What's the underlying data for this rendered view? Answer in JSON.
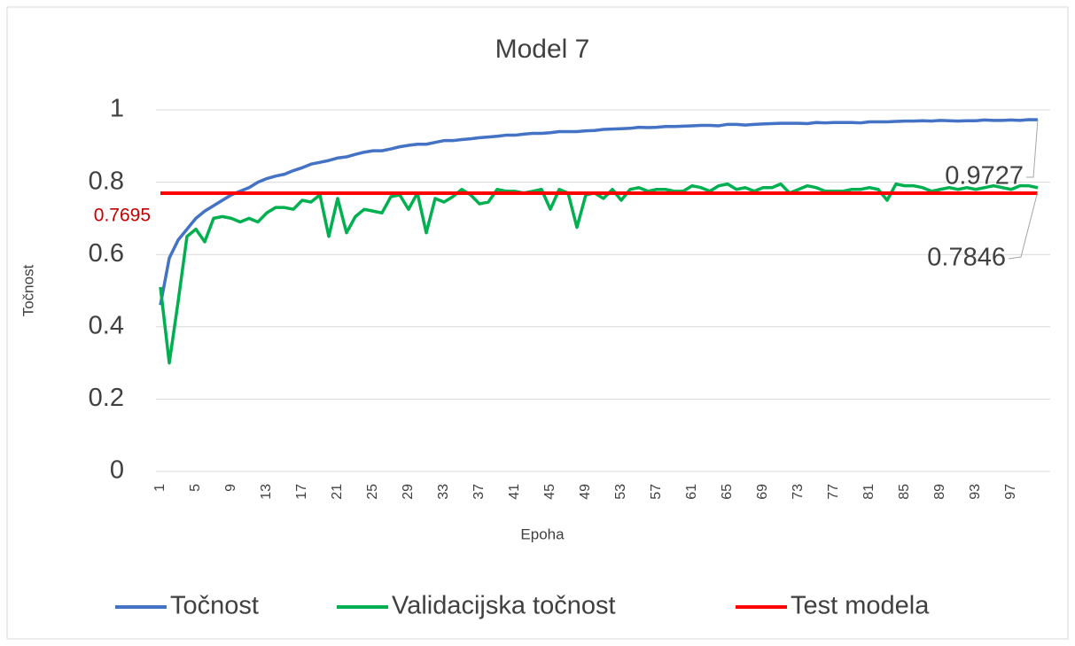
{
  "chart_data": {
    "type": "line",
    "title": "Model 7",
    "x_label": "Epoha",
    "y_label": "Točnost",
    "categories": [
      1,
      null,
      null,
      null,
      5,
      null,
      null,
      null,
      9,
      null,
      null,
      null,
      13,
      null,
      null,
      null,
      17,
      null,
      null,
      null,
      21,
      null,
      null,
      null,
      25,
      null,
      null,
      null,
      29,
      null,
      null,
      null,
      33,
      null,
      null,
      null,
      37,
      null,
      null,
      null,
      41,
      null,
      null,
      null,
      45,
      null,
      null,
      null,
      49,
      null,
      null,
      null,
      53,
      null,
      null,
      null,
      57,
      null,
      null,
      null,
      61,
      null,
      null,
      null,
      65,
      null,
      null,
      null,
      69,
      null,
      null,
      null,
      73,
      null,
      null,
      null,
      77,
      null,
      null,
      null,
      81,
      null,
      null,
      null,
      85,
      null,
      null,
      null,
      89,
      null,
      null,
      null,
      93,
      null,
      null,
      null,
      97,
      null,
      null,
      null
    ],
    "series": [
      {
        "name": "Točnost",
        "color": "#4472c4",
        "values": [
          0.46,
          0.59,
          0.64,
          0.67,
          0.7,
          0.72,
          0.735,
          0.75,
          0.765,
          0.775,
          0.785,
          0.8,
          0.81,
          0.817,
          0.822,
          0.832,
          0.84,
          0.85,
          0.855,
          0.86,
          0.867,
          0.87,
          0.877,
          0.883,
          0.887,
          0.887,
          0.892,
          0.898,
          0.902,
          0.905,
          0.905,
          0.91,
          0.915,
          0.915,
          0.918,
          0.92,
          0.923,
          0.925,
          0.927,
          0.93,
          0.93,
          0.933,
          0.935,
          0.935,
          0.937,
          0.94,
          0.94,
          0.94,
          0.942,
          0.943,
          0.946,
          0.947,
          0.948,
          0.949,
          0.952,
          0.951,
          0.952,
          0.954,
          0.954,
          0.955,
          0.956,
          0.957,
          0.957,
          0.956,
          0.96,
          0.96,
          0.958,
          0.96,
          0.961,
          0.962,
          0.963,
          0.963,
          0.963,
          0.962,
          0.965,
          0.964,
          0.965,
          0.965,
          0.965,
          0.964,
          0.967,
          0.967,
          0.967,
          0.968,
          0.969,
          0.969,
          0.97,
          0.969,
          0.971,
          0.97,
          0.969,
          0.97,
          0.97,
          0.972,
          0.971,
          0.971,
          0.972,
          0.971,
          0.973,
          0.9727
        ]
      },
      {
        "name": "Validacijska točnost",
        "color": "#00b050",
        "values": [
          0.51,
          0.3,
          0.47,
          0.65,
          0.67,
          0.635,
          0.7,
          0.705,
          0.7,
          0.69,
          0.7,
          0.69,
          0.715,
          0.73,
          0.73,
          0.725,
          0.75,
          0.745,
          0.765,
          0.65,
          0.755,
          0.66,
          0.705,
          0.725,
          0.72,
          0.715,
          0.76,
          0.765,
          0.725,
          0.77,
          0.66,
          0.755,
          0.745,
          0.76,
          0.78,
          0.765,
          0.74,
          0.745,
          0.78,
          0.775,
          0.775,
          0.77,
          0.775,
          0.78,
          0.725,
          0.78,
          0.77,
          0.675,
          0.765,
          0.77,
          0.755,
          0.78,
          0.75,
          0.78,
          0.785,
          0.775,
          0.78,
          0.78,
          0.775,
          0.775,
          0.79,
          0.785,
          0.775,
          0.79,
          0.795,
          0.78,
          0.785,
          0.775,
          0.785,
          0.785,
          0.795,
          0.77,
          0.78,
          0.79,
          0.785,
          0.775,
          0.775,
          0.775,
          0.78,
          0.78,
          0.785,
          0.78,
          0.75,
          0.795,
          0.79,
          0.79,
          0.785,
          0.775,
          0.78,
          0.785,
          0.78,
          0.785,
          0.78,
          0.785,
          0.79,
          0.785,
          0.78,
          0.79,
          0.79,
          0.7846
        ]
      },
      {
        "name": "Test modela",
        "color": "#ff0000",
        "values": [
          0.7695,
          0.7695,
          0.7695,
          0.7695,
          0.7695,
          0.7695,
          0.7695,
          0.7695,
          0.7695,
          0.7695,
          0.7695,
          0.7695,
          0.7695,
          0.7695,
          0.7695,
          0.7695,
          0.7695,
          0.7695,
          0.7695,
          0.7695,
          0.7695,
          0.7695,
          0.7695,
          0.7695,
          0.7695,
          0.7695,
          0.7695,
          0.7695,
          0.7695,
          0.7695,
          0.7695,
          0.7695,
          0.7695,
          0.7695,
          0.7695,
          0.7695,
          0.7695,
          0.7695,
          0.7695,
          0.7695,
          0.7695,
          0.7695,
          0.7695,
          0.7695,
          0.7695,
          0.7695,
          0.7695,
          0.7695,
          0.7695,
          0.7695,
          0.7695,
          0.7695,
          0.7695,
          0.7695,
          0.7695,
          0.7695,
          0.7695,
          0.7695,
          0.7695,
          0.7695,
          0.7695,
          0.7695,
          0.7695,
          0.7695,
          0.7695,
          0.7695,
          0.7695,
          0.7695,
          0.7695,
          0.7695,
          0.7695,
          0.7695,
          0.7695,
          0.7695,
          0.7695,
          0.7695,
          0.7695,
          0.7695,
          0.7695,
          0.7695,
          0.7695,
          0.7695,
          0.7695,
          0.7695,
          0.7695,
          0.7695,
          0.7695,
          0.7695,
          0.7695,
          0.7695,
          0.7695,
          0.7695,
          0.7695,
          0.7695,
          0.7695,
          0.7695,
          0.7695,
          0.7695,
          0.7695,
          0.7695
        ]
      }
    ],
    "ylim": [
      0,
      1
    ],
    "yticks": [
      0,
      0.2,
      0.4,
      0.6,
      0.8,
      1
    ],
    "grid": true,
    "legend": "bottom"
  }
}
